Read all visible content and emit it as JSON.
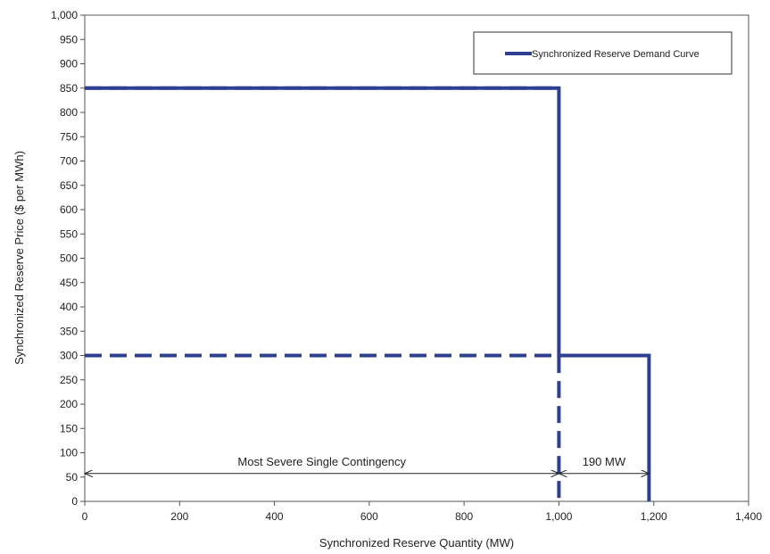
{
  "chart_data": {
    "type": "line",
    "title": "",
    "xlabel": "Synchronized Reserve Quantity (MW)",
    "ylabel": "Synchronized Reserve Price ($ per MWh)",
    "xlim": [
      0,
      1400
    ],
    "ylim": [
      0,
      1000
    ],
    "x_ticks": [
      0,
      200,
      400,
      600,
      800,
      1000,
      1200,
      1400
    ],
    "x_tick_labels": [
      "0",
      "200",
      "400",
      "600",
      "800",
      "1,000",
      "1,200",
      "1,400"
    ],
    "y_ticks": [
      0,
      50,
      100,
      150,
      200,
      250,
      300,
      350,
      400,
      450,
      500,
      550,
      600,
      650,
      700,
      750,
      800,
      850,
      900,
      950,
      1000
    ],
    "y_tick_labels": [
      "0",
      "50",
      "100",
      "150",
      "200",
      "250",
      "300",
      "350",
      "400",
      "450",
      "500",
      "550",
      "600",
      "650",
      "700",
      "750",
      "800",
      "850",
      "900",
      "950",
      "1,000"
    ],
    "grid": false,
    "legend_position": "top-right",
    "series": [
      {
        "name": "Synchronized Reserve Demand Curve",
        "style": "solid",
        "color": "#2e3f8f",
        "points": [
          [
            0,
            850
          ],
          [
            1000,
            850
          ],
          [
            1000,
            300
          ],
          [
            1190,
            300
          ],
          [
            1190,
            0
          ]
        ]
      },
      {
        "style": "dashed",
        "color": "#2e3f8f",
        "points": [
          [
            0,
            850
          ],
          [
            1000,
            850
          ]
        ]
      },
      {
        "style": "dashed",
        "color": "#2e3f8f",
        "points": [
          [
            0,
            300
          ],
          [
            1000,
            300
          ],
          [
            1000,
            0
          ]
        ]
      }
    ],
    "annotations": [
      {
        "text": "Most Severe Single Contingency",
        "x_from": 0,
        "x_to": 1000,
        "y": 50
      },
      {
        "text": "190 MW",
        "x_from": 1000,
        "x_to": 1190,
        "y": 50
      }
    ]
  }
}
